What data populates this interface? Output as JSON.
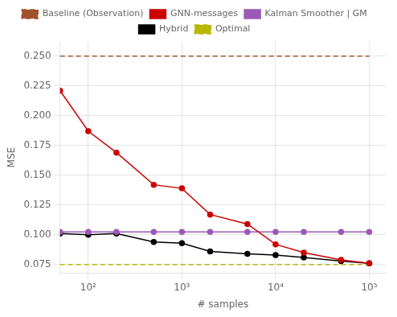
{
  "chart_data": {
    "type": "line",
    "xlabel": "# samples",
    "ylabel": "MSE",
    "x": [
      50,
      100,
      200,
      500,
      1000,
      2000,
      5000,
      10000,
      20000,
      50000,
      100000
    ],
    "series": [
      {
        "name": "Baseline (Observation)",
        "color": "#a0522d",
        "line_style": "dashed",
        "marker": "none",
        "values": [
          0.25,
          0.25,
          0.25,
          0.25,
          0.25,
          0.25,
          0.25,
          0.25,
          0.25,
          0.25,
          0.25
        ]
      },
      {
        "name": "GNN-messages",
        "color": "#cc0000",
        "line_style": "solid",
        "marker": "circle",
        "values": [
          0.221,
          0.187,
          0.169,
          0.142,
          0.139,
          0.117,
          0.109,
          0.092,
          0.085,
          0.079,
          0.076
        ]
      },
      {
        "name": "Kalman Smoother | GM",
        "color": "#9b59b6",
        "line_style": "solid",
        "marker": "circle",
        "values": [
          0.1025,
          0.1025,
          0.1025,
          0.1025,
          0.1025,
          0.1025,
          0.1025,
          0.1025,
          0.1025,
          0.1025,
          0.1025
        ]
      },
      {
        "name": "Hybrid",
        "color": "#000000",
        "line_style": "solid",
        "marker": "circle",
        "values": [
          0.101,
          0.1,
          0.101,
          0.094,
          0.093,
          0.086,
          0.084,
          0.083,
          0.081,
          0.078,
          0.076
        ]
      },
      {
        "name": "Optimal",
        "color": "#b8b800",
        "line_style": "dashed",
        "marker": "none",
        "values": [
          0.075,
          0.075,
          0.075,
          0.075,
          0.075,
          0.075,
          0.075,
          0.075,
          0.075,
          0.075,
          0.075
        ]
      }
    ],
    "xlim": [
      50,
      150000
    ],
    "ylim": [
      0.068,
      0.262
    ],
    "xticks": [
      {
        "value": 100,
        "label": "10²"
      },
      {
        "value": 1000,
        "label": "10³"
      },
      {
        "value": 10000,
        "label": "10⁴"
      },
      {
        "value": 100000,
        "label": "10⁵"
      }
    ],
    "yticks": [
      0.075,
      {
        "value": 0.1,
        "label": "0.100"
      },
      0.125,
      {
        "value": 0.15,
        "label": "0.150"
      },
      0.175,
      {
        "value": 0.2,
        "label": "0.200"
      },
      0.225,
      {
        "value": 0.25,
        "label": "0.250"
      }
    ],
    "log": "x",
    "grid": true,
    "legend": "top"
  }
}
